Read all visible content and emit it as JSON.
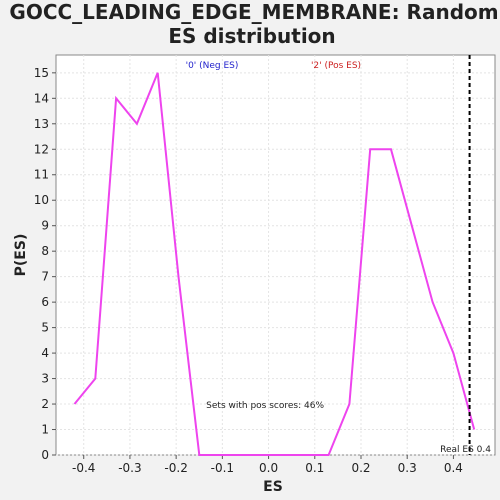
{
  "chart_data": {
    "type": "line",
    "title_line1": "GOCC_LEADING_EDGE_MEMBRANE: Random",
    "title_line2": "ES distribution",
    "xlabel": "ES",
    "ylabel": "P(ES)",
    "xlim": [
      -0.46,
      0.49
    ],
    "ylim": [
      0,
      15.7
    ],
    "x_ticks": [
      -0.4,
      -0.3,
      -0.2,
      -0.1,
      0.0,
      0.1,
      0.2,
      0.3,
      0.4
    ],
    "x_tick_labels": [
      "-0.4",
      "-0.3",
      "-0.2",
      "-0.1",
      "0.0",
      "0.1",
      "0.2",
      "0.3",
      "0.4"
    ],
    "y_ticks": [
      0,
      1,
      2,
      3,
      4,
      5,
      6,
      7,
      8,
      9,
      10,
      11,
      12,
      13,
      14,
      15
    ],
    "y_tick_labels": [
      "0",
      "1",
      "2",
      "3",
      "4",
      "5",
      "6",
      "7",
      "8",
      "9",
      "10",
      "11",
      "12",
      "13",
      "14",
      "15"
    ],
    "grid": true,
    "legend": [
      {
        "label": "'0' (Neg ES)",
        "color": "#2222cc"
      },
      {
        "label": "'2' (Pos ES)",
        "color": "#cc2222"
      }
    ],
    "series": [
      {
        "color": "#ee44ee",
        "x": [
          -0.42,
          -0.375,
          -0.33,
          -0.285,
          -0.24,
          -0.195,
          -0.15,
          0.13,
          0.175,
          0.22,
          0.265,
          0.31,
          0.355,
          0.4,
          0.445
        ],
        "y": [
          2,
          3,
          14,
          13,
          15,
          7,
          0,
          0,
          2,
          12,
          12,
          9,
          6,
          4,
          1
        ]
      }
    ],
    "vline": {
      "x": 0.435,
      "label": "Real ES 0.4",
      "color": "#000000"
    },
    "annotation": {
      "text": "Sets with pos scores: 46%",
      "x": -0.135,
      "y": 2
    }
  }
}
